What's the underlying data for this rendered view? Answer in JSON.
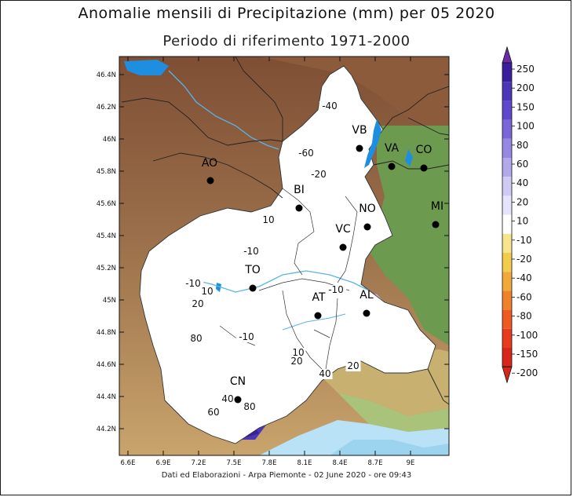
{
  "title": "Anomalie mensili di Precipitazione (mm) per 05 2020",
  "subtitle": "Periodo di riferimento 1971-2000",
  "footer": "Dati ed Elaborazioni - Arpa Piemonte - 02 June 2020 - ore 09:43",
  "axes": {
    "lat_ticks": [
      "46.4N",
      "46.2N",
      "46N",
      "45.8N",
      "45.6N",
      "45.4N",
      "45.2N",
      "45N",
      "44.8N",
      "44.6N",
      "44.4N",
      "44.2N"
    ],
    "lon_ticks": [
      "6.6E",
      "6.9E",
      "7.2E",
      "7.5E",
      "7.8E",
      "8.1E",
      "8.4E",
      "8.7E",
      "9E"
    ]
  },
  "colorbar": {
    "levels": [
      "250",
      "200",
      "150",
      "100",
      "80",
      "60",
      "40",
      "20",
      "10",
      "-10",
      "-20",
      "-40",
      "-60",
      "-80",
      "-100",
      "-150",
      "-200"
    ],
    "colors": [
      "#6b2aa8",
      "#3a1f9c",
      "#4b36b8",
      "#6048cc",
      "#7a66d8",
      "#9688e2",
      "#b2a9ec",
      "#cfcaf4",
      "#e6e4fa",
      "#ffffff",
      "#f6e58e",
      "#f4cc4c",
      "#f2a93c",
      "#f0822c",
      "#ee5a22",
      "#e83a1c",
      "#d8261a"
    ]
  },
  "cities": [
    {
      "code": "AO"
    },
    {
      "code": "BI"
    },
    {
      "code": "VB"
    },
    {
      "code": "VA"
    },
    {
      "code": "CO"
    },
    {
      "code": "NO"
    },
    {
      "code": "MI"
    },
    {
      "code": "VC"
    },
    {
      "code": "TO"
    },
    {
      "code": "AT"
    },
    {
      "code": "AL"
    },
    {
      "code": "CN"
    }
  ],
  "contour_labels": [
    "-40",
    "-60",
    "-20",
    "10",
    "-10",
    "-10",
    "10",
    "-10",
    "20",
    "80",
    "-10",
    "10",
    "20",
    "20",
    "40",
    "40",
    "80",
    "60"
  ],
  "colors": {
    "water": "#1e8fe0",
    "precip_region": "#ffffff",
    "terrain_high": "#8a5a3a",
    "terrain_low": "#6f9a50"
  }
}
